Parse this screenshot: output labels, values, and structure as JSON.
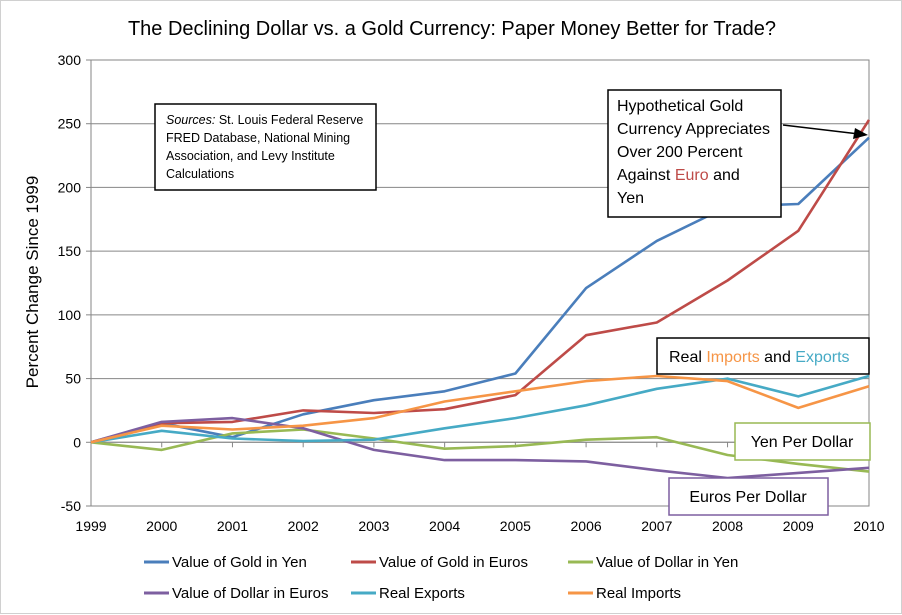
{
  "chart_data": {
    "type": "line",
    "title": "The Declining Dollar vs. a Gold Currency: Paper Money Better for Trade?",
    "ylabel": "Percent Change Since  1999",
    "xlabel": "",
    "ylim": [
      -50,
      300
    ],
    "yticks": [
      -50,
      0,
      50,
      100,
      150,
      200,
      250,
      300
    ],
    "x": [
      "1999",
      "2000",
      "2001",
      "2002",
      "2003",
      "2004",
      "2005",
      "2006",
      "2007",
      "2008",
      "2009",
      "2010"
    ],
    "grid": "horizontal",
    "legend_position": "bottom",
    "series": [
      {
        "name": "Value of Gold in Yen",
        "color": "#4a7ebb",
        "values": [
          0,
          15,
          4,
          22,
          33,
          40,
          54,
          121,
          158,
          185,
          187,
          239
        ]
      },
      {
        "name": "Value of Gold in Euros",
        "color": "#be4b48",
        "values": [
          0,
          15,
          16,
          25,
          23,
          26,
          37,
          84,
          94,
          127,
          166,
          253
        ]
      },
      {
        "name": "Value of Dollar in Yen",
        "color": "#98b954",
        "values": [
          0,
          -6,
          7,
          10,
          3,
          -5,
          -3,
          2,
          4,
          -10,
          -17,
          -23
        ]
      },
      {
        "name": "Value of Dollar in Euros",
        "color": "#7d5fa0",
        "values": [
          0,
          16,
          19,
          11,
          -6,
          -14,
          -14,
          -15,
          -22,
          -28,
          -24,
          -20
        ]
      },
      {
        "name": "Real Exports",
        "color": "#46aac5",
        "values": [
          0,
          9,
          3,
          1,
          2,
          11,
          19,
          29,
          42,
          50,
          36,
          52
        ]
      },
      {
        "name": "Real Imports",
        "color": "#f69546",
        "values": [
          0,
          13,
          10,
          13,
          19,
          32,
          40,
          48,
          52,
          48,
          27,
          44
        ]
      }
    ],
    "annotations": {
      "sources": {
        "label": "Sources:",
        "lines": [
          "St. Louis Federal Reserve",
          "FRED Database, National Mining",
          "Association, and Levy Institute",
          "Calculations"
        ]
      },
      "gold_callout": {
        "lines": [
          "Hypothetical Gold",
          "Currency Appreciates",
          "Over 200 Percent",
          "Against"
        ],
        "euro_word": "Euro",
        "and_word": " and",
        "yen_word": "Yen",
        "euro_color": "#be4b48",
        "yen_color": "#4a7ebb"
      },
      "trade_label": {
        "prefix": "Real ",
        "imports": "Imports",
        "middle": " and ",
        "exports": "Exports",
        "imports_color": "#f69546",
        "exports_color": "#46aac5"
      },
      "yen_per_dollar": {
        "text": "Yen Per Dollar",
        "color": "#98b954"
      },
      "euros_per_dollar": {
        "text": "Euros Per Dollar",
        "color": "#7d5fa0"
      }
    }
  }
}
